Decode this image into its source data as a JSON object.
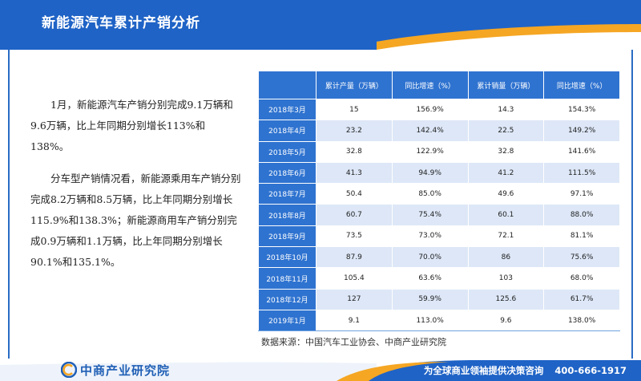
{
  "header": {
    "title": "新能源汽车累计产销分析"
  },
  "body": {
    "paragraphs": [
      "1月，新能源汽车产销分别完成9.1万辆和9.6万辆，比上年同期分别增长113%和138%。",
      "分车型产销情况看，新能源乘用车产销分别完成8.2万辆和8.5万辆，比上年同期分别增长115.9%和138.3%；新能源商用车产销分别完成0.9万辆和1.1万辆，比上年同期分别增长90.1%和135.1%。"
    ]
  },
  "table": {
    "headers": [
      "",
      "累计产量（万辆）",
      "同比增速（%）",
      "累计销量（万辆）",
      "同比增速（%）"
    ],
    "rows": [
      {
        "month": "2018年3月",
        "prod": "15",
        "prod_growth": "156.9%",
        "sales": "14.3",
        "sales_growth": "154.3%"
      },
      {
        "month": "2018年4月",
        "prod": "23.2",
        "prod_growth": "142.4%",
        "sales": "22.5",
        "sales_growth": "149.2%"
      },
      {
        "month": "2018年5月",
        "prod": "32.8",
        "prod_growth": "122.9%",
        "sales": "32.8",
        "sales_growth": "141.6%"
      },
      {
        "month": "2018年6月",
        "prod": "41.3",
        "prod_growth": "94.9%",
        "sales": "41.2",
        "sales_growth": "111.5%"
      },
      {
        "month": "2018年7月",
        "prod": "50.4",
        "prod_growth": "85.0%",
        "sales": "49.6",
        "sales_growth": "97.1%"
      },
      {
        "month": "2018年8月",
        "prod": "60.7",
        "prod_growth": "75.4%",
        "sales": "60.1",
        "sales_growth": "88.0%"
      },
      {
        "month": "2018年9月",
        "prod": "73.5",
        "prod_growth": "73.0%",
        "sales": "72.1",
        "sales_growth": "81.1%"
      },
      {
        "month": "2018年10月",
        "prod": "87.9",
        "prod_growth": "70.0%",
        "sales": "86",
        "sales_growth": "75.6%"
      },
      {
        "month": "2018年11月",
        "prod": "105.4",
        "prod_growth": "63.6%",
        "sales": "103",
        "sales_growth": "68.0%"
      },
      {
        "month": "2018年12月",
        "prod": "127",
        "prod_growth": "59.9%",
        "sales": "125.6",
        "sales_growth": "61.7%"
      },
      {
        "month": "2019年1月",
        "prod": "9.1",
        "prod_growth": "113.0%",
        "sales": "9.6",
        "sales_growth": "138.0%"
      }
    ]
  },
  "source": "数据来源：中国汽车工业协会、中商产业研究院",
  "footer": {
    "logo_text": "中商产业研究院",
    "slogan": "为全球商业领袖提供决策咨询",
    "phone": "400-666-1917"
  },
  "colors": {
    "header_blue": "#1f63c6",
    "accent_orange": "#f5a623",
    "table_header_blue": "#2f73d0",
    "table_stripe": "#dde7f7"
  }
}
